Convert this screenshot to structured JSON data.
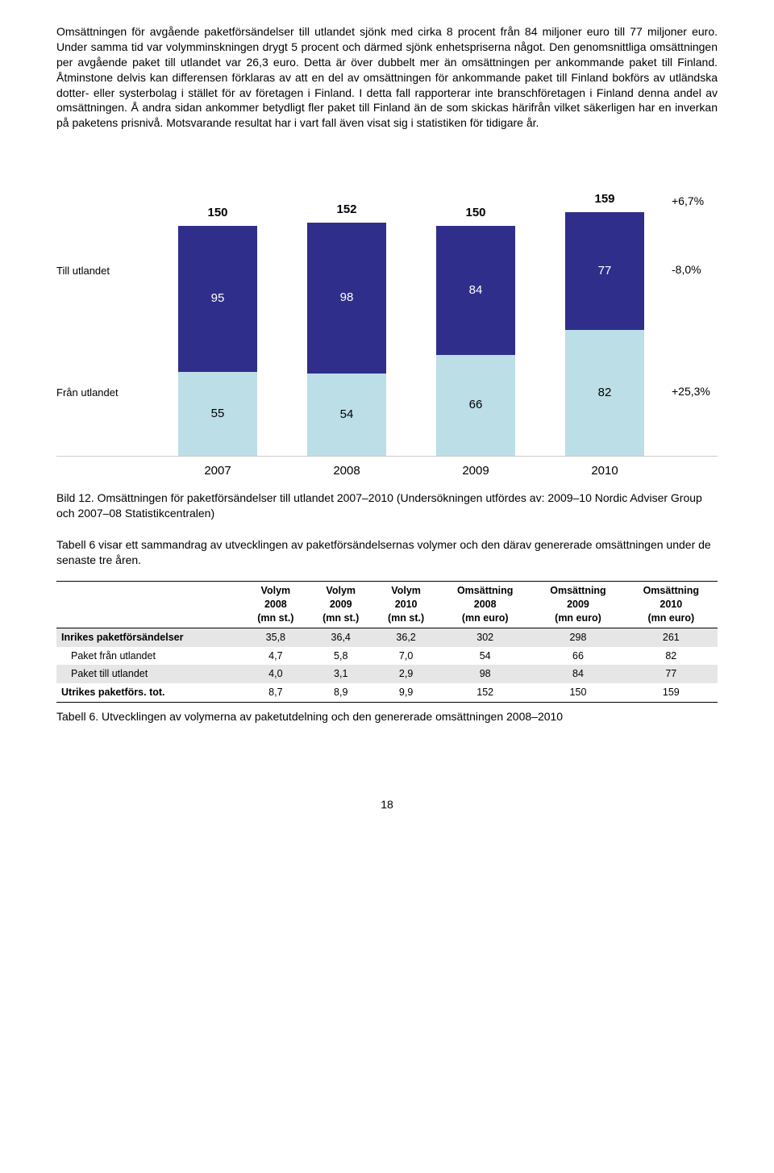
{
  "paragraph1": "Omsättningen för avgående paketförsändelser till utlandet sjönk med cirka 8 procent från 84 miljoner euro till 77 miljoner euro. Under samma tid var volymminskningen drygt 5 procent och därmed sjönk enhetspriserna något. Den genomsnittliga omsättningen per avgående paket till utlandet var 26,3 euro. Detta är över dubbelt mer än omsättningen per ankommande paket till Finland. Åtminstone delvis kan differensen förklaras av att en del av omsättningen för ankommande paket till Finland bokförs av utländska dotter- eller systerbolag i stället för av företagen i Finland. I detta fall rapporterar inte branschföretagen i Finland denna andel av omsättningen. Å andra sidan ankommer betydligt fler paket till Finland än de som skickas härifrån vilket säkerligen har en inverkan på paketens prisnivå. Motsvarande resultat har i vart fall även visat sig i statistiken för tidigare år.",
  "chart": {
    "type": "stacked-bar",
    "scale": 1.9,
    "top_color": "#2f2e8b",
    "bot_color": "#bcdee6",
    "legend": {
      "till": "Till utlandet",
      "fran": "Från utlandet"
    },
    "years": [
      "2007",
      "2008",
      "2009",
      "2010"
    ],
    "totals": [
      "150",
      "152",
      "150",
      "159"
    ],
    "top_vals": [
      95,
      98,
      84,
      77
    ],
    "bot_vals": [
      55,
      54,
      66,
      82
    ],
    "pct": {
      "total": "+6,7%",
      "top": "-8,0%",
      "bot": "+25,3%"
    }
  },
  "caption1": "Bild 12. Omsättningen för paketförsändelser till utlandet 2007–2010 (Undersökningen utfördes av: 2009–10 Nordic Adviser Group och 2007–08 Statistikcentralen)",
  "paragraph2": "Tabell 6 visar ett sammandrag av utvecklingen av paketförsändelsernas volymer och den därav genererade omsättningen under de senaste tre åren.",
  "table": {
    "headers": [
      "",
      "Volym\n2008\n(mn st.)",
      "Volym\n2009\n(mn st.)",
      "Volym\n2010\n(mn st.)",
      "Omsättning\n2008\n(mn euro)",
      "Omsättning\n2009\n(mn euro)",
      "Omsättning\n2010\n(mn euro)"
    ],
    "rows": [
      {
        "shade": true,
        "indent": false,
        "cells": [
          "Inrikes paketförsändelser",
          "35,8",
          "36,4",
          "36,2",
          "302",
          "298",
          "261"
        ]
      },
      {
        "shade": false,
        "indent": true,
        "cells": [
          "Paket från utlandet",
          "4,7",
          "5,8",
          "7,0",
          "54",
          "66",
          "82"
        ]
      },
      {
        "shade": true,
        "indent": true,
        "cells": [
          "Paket till utlandet",
          "4,0",
          "3,1",
          "2,9",
          "98",
          "84",
          "77"
        ]
      },
      {
        "shade": false,
        "indent": false,
        "cells": [
          "Utrikes paketförs. tot.",
          "8,7",
          "8,9",
          "9,9",
          "152",
          "150",
          "159"
        ]
      }
    ]
  },
  "caption2": "Tabell 6. Utvecklingen av volymerna av paketutdelning och den genererade omsättningen 2008–2010",
  "page_number": "18"
}
